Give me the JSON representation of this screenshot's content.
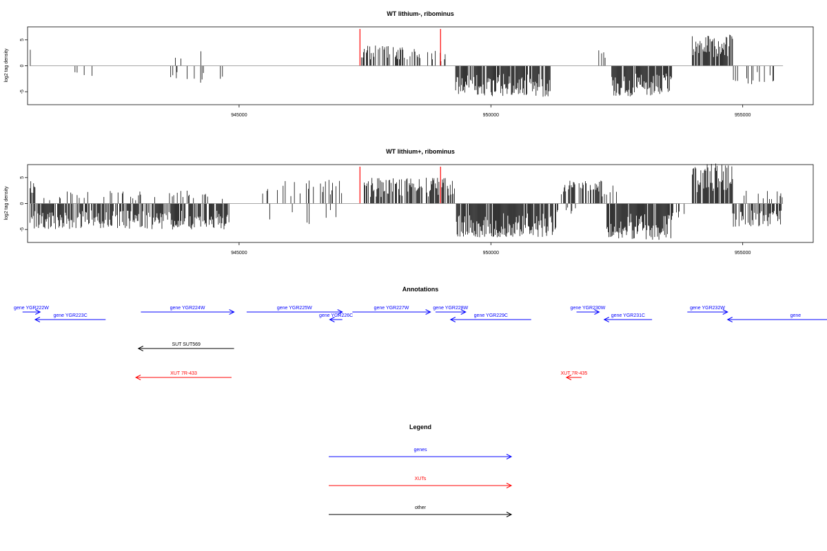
{
  "chart_data": [
    {
      "type": "bar",
      "title": "WT lithium-, ribominus",
      "ylabel": "log2 tag density",
      "xlabel": "",
      "xlim": [
        940800,
        956400
      ],
      "ylim": [
        -7.5,
        7.5
      ],
      "xticks": [
        945000,
        950000,
        955000
      ],
      "yticks": [
        -5,
        0,
        5
      ],
      "marker_lines_x": [
        947400,
        949000
      ],
      "marker_color": "#ff0000",
      "signal_regions": [
        {
          "start": 940840,
          "end": 940900,
          "sign": 1,
          "max": 4,
          "density": 0.5
        },
        {
          "start": 941000,
          "end": 942100,
          "sign": -1,
          "max": 2.5,
          "density": 0.08
        },
        {
          "start": 943600,
          "end": 943800,
          "sign": -1,
          "max": 2.5,
          "density": 0.3
        },
        {
          "start": 943650,
          "end": 943900,
          "sign": 1,
          "max": 2.8,
          "density": 0.15
        },
        {
          "start": 943900,
          "end": 944300,
          "sign": -1,
          "max": 3.5,
          "density": 0.2
        },
        {
          "start": 944100,
          "end": 944300,
          "sign": 1,
          "max": 3,
          "density": 0.1
        },
        {
          "start": 944600,
          "end": 944700,
          "sign": -1,
          "max": 3,
          "density": 0.3
        },
        {
          "start": 947400,
          "end": 948700,
          "sign": 1,
          "max": 4,
          "density": 0.55
        },
        {
          "start": 948700,
          "end": 949100,
          "sign": 1,
          "max": 3,
          "density": 0.3
        },
        {
          "start": 949300,
          "end": 951200,
          "sign": -1,
          "max": 6,
          "density": 0.85
        },
        {
          "start": 951200,
          "end": 951250,
          "sign": 1,
          "max": 3,
          "density": 0.3
        },
        {
          "start": 952100,
          "end": 952300,
          "sign": 1,
          "max": 3,
          "density": 0.4
        },
        {
          "start": 952400,
          "end": 953600,
          "sign": -1,
          "max": 6,
          "density": 0.85
        },
        {
          "start": 954000,
          "end": 954800,
          "sign": 1,
          "max": 6,
          "density": 0.85
        },
        {
          "start": 954800,
          "end": 955800,
          "sign": -1,
          "max": 4,
          "density": 0.2
        }
      ]
    },
    {
      "type": "bar",
      "title": "WT lithium+, ribominus",
      "ylabel": "log2 tag density",
      "xlabel": "",
      "xlim": [
        940800,
        956400
      ],
      "ylim": [
        -7.5,
        7.5
      ],
      "xticks": [
        945000,
        950000,
        955000
      ],
      "yticks": [
        -5,
        0,
        5
      ],
      "marker_lines_x": [
        947400,
        949000
      ],
      "marker_color": "#ff0000",
      "signal_regions": [
        {
          "start": 940850,
          "end": 941000,
          "sign": 1,
          "max": 4.5,
          "density": 0.6
        },
        {
          "start": 940850,
          "end": 944800,
          "sign": -1,
          "max": 5,
          "density": 0.75
        },
        {
          "start": 941000,
          "end": 944800,
          "sign": 1,
          "max": 2.5,
          "density": 0.12
        },
        {
          "start": 945300,
          "end": 947100,
          "sign": 1,
          "max": 5,
          "density": 0.2
        },
        {
          "start": 945300,
          "end": 947100,
          "sign": -1,
          "max": 4,
          "density": 0.08
        },
        {
          "start": 947400,
          "end": 949300,
          "sign": 1,
          "max": 5,
          "density": 0.7
        },
        {
          "start": 949300,
          "end": 951300,
          "sign": -1,
          "max": 6.5,
          "density": 0.9
        },
        {
          "start": 951400,
          "end": 952500,
          "sign": 1,
          "max": 4.5,
          "density": 0.5
        },
        {
          "start": 951300,
          "end": 951900,
          "sign": -1,
          "max": 2,
          "density": 0.2
        },
        {
          "start": 952300,
          "end": 953600,
          "sign": -1,
          "max": 7,
          "density": 0.9
        },
        {
          "start": 953600,
          "end": 954000,
          "sign": -1,
          "max": 3,
          "density": 0.3
        },
        {
          "start": 954000,
          "end": 954800,
          "sign": 1,
          "max": 8,
          "density": 0.9
        },
        {
          "start": 954800,
          "end": 955800,
          "sign": -1,
          "max": 4.5,
          "density": 0.6
        },
        {
          "start": 955000,
          "end": 955800,
          "sign": 1,
          "max": 2.5,
          "density": 0.25
        }
      ]
    }
  ],
  "annotations": {
    "title": "Annotations",
    "colors": {
      "genes": "#0000ff",
      "XUTs": "#ff0000",
      "other": "#000000"
    },
    "features": [
      {
        "label": "gene YGR222W",
        "start": 940700,
        "end": 941050,
        "strand": "+",
        "type": "genes",
        "row": 0
      },
      {
        "label": "gene YGR223C",
        "start": 940950,
        "end": 942350,
        "strand": "-",
        "type": "genes",
        "row": 1
      },
      {
        "label": "gene YGR224W",
        "start": 943050,
        "end": 944900,
        "strand": "+",
        "type": "genes",
        "row": 0
      },
      {
        "label": "gene YGR225W",
        "start": 945150,
        "end": 947050,
        "strand": "+",
        "type": "genes",
        "row": 0
      },
      {
        "label": "gene YGR226C",
        "start": 946800,
        "end": 947050,
        "strand": "-",
        "type": "genes",
        "row": 1
      },
      {
        "label": "gene YGR227W",
        "start": 947250,
        "end": 948800,
        "strand": "+",
        "type": "genes",
        "row": 0
      },
      {
        "label": "gene YGR228W",
        "start": 948900,
        "end": 949500,
        "strand": "+",
        "type": "genes",
        "row": 0
      },
      {
        "label": "gene YGR229C",
        "start": 949200,
        "end": 950800,
        "strand": "-",
        "type": "genes",
        "row": 1
      },
      {
        "label": "gene YGR230W",
        "start": 951700,
        "end": 952150,
        "strand": "+",
        "type": "genes",
        "row": 0
      },
      {
        "label": "gene YGR231C",
        "start": 952250,
        "end": 953200,
        "strand": "-",
        "type": "genes",
        "row": 1
      },
      {
        "label": "gene YGR232W",
        "start": 953900,
        "end": 954700,
        "strand": "+",
        "type": "genes",
        "row": 0
      },
      {
        "label": "gene",
        "start": 954700,
        "end": 957400,
        "strand": "-",
        "type": "genes",
        "row": 1
      },
      {
        "label": "SUT SUT569",
        "start": 943000,
        "end": 944900,
        "strand": "-",
        "type": "other",
        "row": 2
      },
      {
        "label": "XUT 7R-433",
        "start": 942950,
        "end": 944850,
        "strand": "-",
        "type": "XUTs",
        "row": 3
      },
      {
        "label": "XUT 7R-435",
        "start": 951500,
        "end": 951800,
        "strand": "-",
        "type": "XUTs",
        "row": 3
      }
    ]
  },
  "legend": {
    "title": "Legend",
    "items": [
      {
        "label": "genes",
        "color": "#0000ff"
      },
      {
        "label": "XUTs",
        "color": "#ff0000"
      },
      {
        "label": "other",
        "color": "#000000"
      }
    ]
  }
}
